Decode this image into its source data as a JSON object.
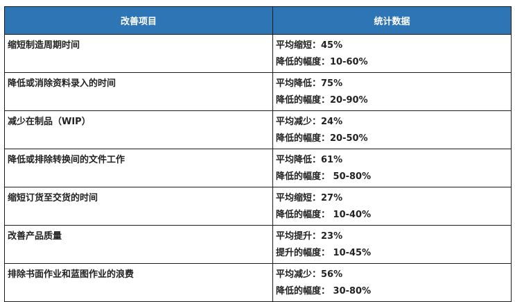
{
  "header_color": "#2e75b6",
  "columns": [
    "改善项目",
    "统计数据"
  ],
  "rows": [
    {
      "item": "缩短制造周期时间",
      "line1": "平均缩短：45%",
      "line2": "降低的幅度：10-60%"
    },
    {
      "item": "降低或消除资料录入的时间",
      "line1": "平均降低：75%",
      "line2": "降低的幅度：20-90%"
    },
    {
      "item": "减少在制品（WIP）",
      "line1": "平均减少：24%",
      "line2": "降低的幅度：20-50%"
    },
    {
      "item": "降低或排除转换间的文件工作",
      "line1": "平均降低：61%",
      "line2": "降低的幅度： 50-80%"
    },
    {
      "item": "缩短订货至交货的时间",
      "line1": "平均缩短：27%",
      "line2": "降低的幅度： 10-40%"
    },
    {
      "item": "改善产品质量",
      "line1": "平均提升：23%",
      "line2": "提升的幅度： 10-45%"
    },
    {
      "item": "排除书面作业和蓝图作业的浪费",
      "line1": "平均减少：56%",
      "line2": "降低的幅度： 30-80%"
    }
  ]
}
